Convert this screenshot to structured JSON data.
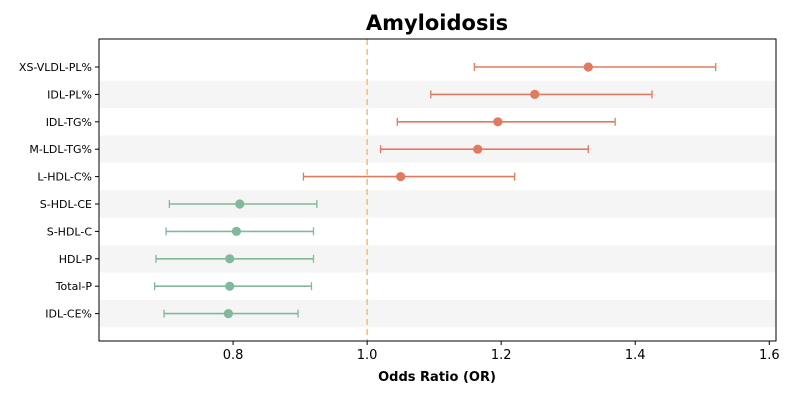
{
  "chart_data": {
    "type": "forest",
    "title": "Amyloidosis",
    "xlabel": "Odds Ratio (OR)",
    "ylabel": "",
    "xlim": [
      0.6,
      1.61
    ],
    "xticks": [
      0.8,
      1.0,
      1.2,
      1.4,
      1.6
    ],
    "xtick_labels": [
      "0.8",
      "1.0",
      "1.2",
      "1.4",
      "1.6"
    ],
    "reference_line": 1.0,
    "row_shading": "alternating",
    "colors": {
      "risk": "#e07b5f",
      "protective": "#82b89b",
      "reference": "#f5c07a",
      "row_band": "#f5f5f5"
    },
    "rows": [
      {
        "label": "XS-VLDL-PL%",
        "or": 1.33,
        "lower": 1.16,
        "upper": 1.52,
        "group": "risk"
      },
      {
        "label": "IDL-PL%",
        "or": 1.25,
        "lower": 1.095,
        "upper": 1.425,
        "group": "risk"
      },
      {
        "label": "IDL-TG%",
        "or": 1.195,
        "lower": 1.045,
        "upper": 1.37,
        "group": "risk"
      },
      {
        "label": "M-LDL-TG%",
        "or": 1.165,
        "lower": 1.02,
        "upper": 1.33,
        "group": "risk"
      },
      {
        "label": "L-HDL-C%",
        "or": 1.05,
        "lower": 0.905,
        "upper": 1.22,
        "group": "risk"
      },
      {
        "label": "S-HDL-CE",
        "or": 0.81,
        "lower": 0.705,
        "upper": 0.925,
        "group": "protective"
      },
      {
        "label": "S-HDL-C",
        "or": 0.805,
        "lower": 0.7,
        "upper": 0.92,
        "group": "protective"
      },
      {
        "label": "HDL-P",
        "or": 0.795,
        "lower": 0.685,
        "upper": 0.92,
        "group": "protective"
      },
      {
        "label": "Total-P",
        "or": 0.795,
        "lower": 0.683,
        "upper": 0.917,
        "group": "protective"
      },
      {
        "label": "IDL-CE%",
        "or": 0.793,
        "lower": 0.697,
        "upper": 0.897,
        "group": "protective"
      }
    ]
  }
}
